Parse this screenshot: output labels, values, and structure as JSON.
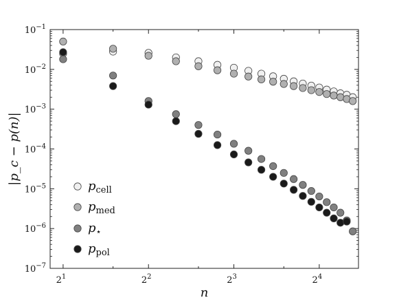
{
  "chart_data": {
    "type": "scatter",
    "title": "",
    "xlabel": "n",
    "ylabel": "|p_c − p(n)|",
    "xscale": "log2",
    "yscale": "log10",
    "xlim": [
      1.8,
      22
    ],
    "ylim": [
      1e-07,
      0.1
    ],
    "xticks": [
      {
        "value": 2,
        "base": "2",
        "exp": "1"
      },
      {
        "value": 4,
        "base": "2",
        "exp": "2"
      },
      {
        "value": 8,
        "base": "2",
        "exp": "3"
      },
      {
        "value": 16,
        "base": "2",
        "exp": "4"
      }
    ],
    "yticks": [
      {
        "value": 1e-07,
        "base": "10",
        "exp": "−7"
      },
      {
        "value": 1e-06,
        "base": "10",
        "exp": "−6"
      },
      {
        "value": 1e-05,
        "base": "10",
        "exp": "−5"
      },
      {
        "value": 0.0001,
        "base": "10",
        "exp": "−4"
      },
      {
        "value": 0.001,
        "base": "10",
        "exp": "−3"
      },
      {
        "value": 0.01,
        "base": "10",
        "exp": "−2"
      },
      {
        "value": 0.1,
        "base": "10",
        "exp": "−1"
      }
    ],
    "grid": false,
    "legend_position": "lower-left",
    "series": [
      {
        "name": "p_cell",
        "sym": "p",
        "sub": "cell",
        "color": "#f0f0f0",
        "x": [
          2,
          3,
          4,
          5,
          6,
          7,
          8,
          9,
          10,
          11,
          12,
          13,
          14,
          15,
          16,
          17,
          18,
          19,
          20,
          21
        ],
        "y": [
          0.025,
          0.028,
          0.026,
          0.02,
          0.016,
          0.013,
          0.011,
          0.0092,
          0.0078,
          0.0067,
          0.0058,
          0.005,
          0.0044,
          0.0039,
          0.0035,
          0.0031,
          0.0028,
          0.0025,
          0.0023,
          0.002
        ]
      },
      {
        "name": "p_med",
        "sym": "p",
        "sub": "med",
        "color": "#b0b0b0",
        "x": [
          2,
          3,
          4,
          5,
          6,
          7,
          8,
          9,
          10,
          11,
          12,
          13,
          14,
          15,
          16,
          17,
          18,
          19,
          20,
          21
        ],
        "y": [
          0.05,
          0.033,
          0.022,
          0.016,
          0.012,
          0.0095,
          0.0078,
          0.0066,
          0.0056,
          0.0049,
          0.0043,
          0.0038,
          0.0034,
          0.003,
          0.0027,
          0.0024,
          0.0022,
          0.002,
          0.0018,
          0.0016
        ]
      },
      {
        "name": "p_star",
        "sym": "p",
        "sub": "⋆",
        "color": "#808080",
        "x": [
          2,
          3,
          4,
          5,
          6,
          7,
          8,
          9,
          10,
          11,
          12,
          13,
          14,
          15,
          16,
          17,
          18,
          19,
          20,
          21
        ],
        "y": [
          0.018,
          0.007,
          0.0016,
          0.00075,
          0.0004,
          0.00023,
          0.000135,
          9e-05,
          5.6e-05,
          3.7e-05,
          2.5e-05,
          1.75e-05,
          1.25e-05,
          8.8e-06,
          6.4e-06,
          4.6e-06,
          3.4e-06,
          2.5e-06,
          1.6e-06,
          8.5e-07
        ]
      },
      {
        "name": "p_pol",
        "sym": "p",
        "sub": "pol",
        "color": "#1a1a1a",
        "x": [
          2,
          3,
          4,
          5,
          6,
          7,
          8,
          9,
          10,
          11,
          12,
          13,
          14,
          15,
          16,
          17,
          18,
          19,
          20
        ],
        "y": [
          0.027,
          0.0038,
          0.0013,
          0.0005,
          0.00024,
          0.000125,
          7.3e-05,
          4.6e-05,
          3e-05,
          2e-05,
          1.35e-05,
          9.4e-06,
          6.6e-06,
          4.7e-06,
          3.4e-06,
          2.5e-06,
          1.8e-06,
          1.4e-06,
          1.5e-06
        ]
      }
    ]
  }
}
